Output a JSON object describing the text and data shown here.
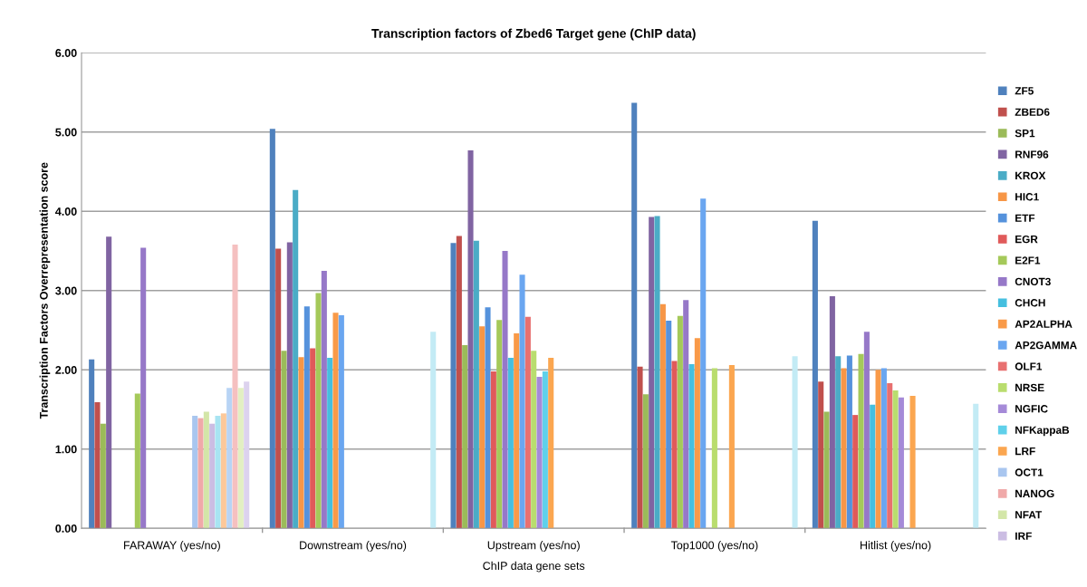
{
  "chart_data": {
    "type": "bar",
    "title": "Transcription factors of Zbed6 Target gene (ChIP data)",
    "xlabel": "ChIP data gene sets",
    "ylabel": "Transcription Factors Overrepresentation score",
    "categories": [
      "FARAWAY (yes/no)",
      "Downstream (yes/no)",
      "Upstream (yes/no)",
      "Top1000 (yes/no)",
      "Hitlist (yes/no)"
    ],
    "ylim": [
      0,
      6
    ],
    "yticks": [
      {
        "value": 0,
        "label": "0.00"
      },
      {
        "value": 1,
        "label": "1.00"
      },
      {
        "value": 2,
        "label": "2.00"
      },
      {
        "value": 3,
        "label": "3.00"
      },
      {
        "value": 4,
        "label": "4.00"
      },
      {
        "value": 5,
        "label": "5.00"
      },
      {
        "value": 6,
        "label": "6.00"
      }
    ],
    "grid": "y",
    "legend": "right",
    "series": [
      {
        "name": "ZF5",
        "color": "#4f81bd",
        "values": [
          2.13,
          5.04,
          3.6,
          5.37,
          3.88
        ]
      },
      {
        "name": "ZBED6",
        "color": "#c0504d",
        "values": [
          1.59,
          3.53,
          3.69,
          2.04,
          1.85
        ]
      },
      {
        "name": "SP1",
        "color": "#9bbb59",
        "values": [
          1.32,
          2.24,
          2.31,
          1.69,
          1.47
        ]
      },
      {
        "name": "RNF96",
        "color": "#8064a2",
        "values": [
          3.68,
          3.61,
          4.77,
          3.93,
          2.93
        ]
      },
      {
        "name": "KROX",
        "color": "#4bacc6",
        "values": [
          null,
          4.27,
          3.63,
          3.94,
          2.17
        ]
      },
      {
        "name": "HIC1",
        "color": "#f79646",
        "values": [
          null,
          2.16,
          2.55,
          2.83,
          2.02
        ]
      },
      {
        "name": "ETF",
        "color": "#5592dc",
        "values": [
          null,
          2.8,
          2.79,
          2.62,
          2.18
        ]
      },
      {
        "name": "EGR",
        "color": "#e05a5a",
        "values": [
          null,
          2.27,
          1.98,
          2.11,
          1.43
        ]
      },
      {
        "name": "E2F1",
        "color": "#a5c95a",
        "values": [
          1.7,
          2.97,
          2.63,
          2.68,
          2.2
        ]
      },
      {
        "name": "CNOT3",
        "color": "#9678c8",
        "values": [
          3.54,
          3.25,
          3.5,
          2.88,
          2.48
        ]
      },
      {
        "name": "CHCH",
        "color": "#45bfdf",
        "values": [
          null,
          2.15,
          2.15,
          2.07,
          1.56
        ]
      },
      {
        "name": "AP2ALPHA",
        "color": "#f99a48",
        "values": [
          null,
          2.72,
          2.46,
          2.4,
          2.0
        ]
      },
      {
        "name": "AP2GAMMA",
        "color": "#6aa6f0",
        "values": [
          null,
          2.69,
          3.2,
          4.16,
          2.02
        ]
      },
      {
        "name": "OLF1",
        "color": "#e87070",
        "values": [
          null,
          null,
          2.67,
          null,
          1.83
        ]
      },
      {
        "name": "NRSE",
        "color": "#b9dd6e",
        "values": [
          null,
          null,
          2.24,
          2.02,
          1.74
        ]
      },
      {
        "name": "NGFIC",
        "color": "#a58ad8",
        "values": [
          null,
          null,
          1.91,
          null,
          1.65
        ]
      },
      {
        "name": "NFKappaB",
        "color": "#5fd0ea",
        "values": [
          null,
          null,
          1.98,
          null,
          null
        ]
      },
      {
        "name": "LRF",
        "color": "#fba650",
        "values": [
          null,
          null,
          2.15,
          2.06,
          1.67
        ]
      },
      {
        "name": "OCT1",
        "color": "#a9c6ef",
        "values": [
          1.42,
          null,
          null,
          null,
          null
        ]
      },
      {
        "name": "NANOG",
        "color": "#f0a9a9",
        "values": [
          1.39,
          null,
          null,
          null,
          null
        ]
      },
      {
        "name": "NFAT",
        "color": "#d3e6a8",
        "values": [
          1.47,
          null,
          null,
          null,
          null
        ]
      },
      {
        "name": "IRF",
        "color": "#cbbde3",
        "values": [
          1.32,
          null,
          null,
          null,
          null
        ]
      },
      {
        "color": "#a8e4f2",
        "values": [
          1.42,
          null,
          null,
          null,
          null
        ]
      },
      {
        "color": "#fcc89a",
        "values": [
          1.45,
          null,
          null,
          null,
          null
        ]
      },
      {
        "color": "#b8d4f5",
        "values": [
          1.77,
          null,
          null,
          null,
          null
        ]
      },
      {
        "color": "#f5c0c0",
        "values": [
          3.58,
          null,
          null,
          null,
          null
        ]
      },
      {
        "color": "#e2efc2",
        "values": [
          1.77,
          null,
          null,
          null,
          null
        ]
      },
      {
        "color": "#dcd2ee",
        "values": [
          1.85,
          null,
          null,
          null,
          null
        ]
      },
      {
        "color": "#c3ebf5",
        "values": [
          null,
          2.48,
          null,
          2.17,
          1.57
        ]
      }
    ]
  }
}
